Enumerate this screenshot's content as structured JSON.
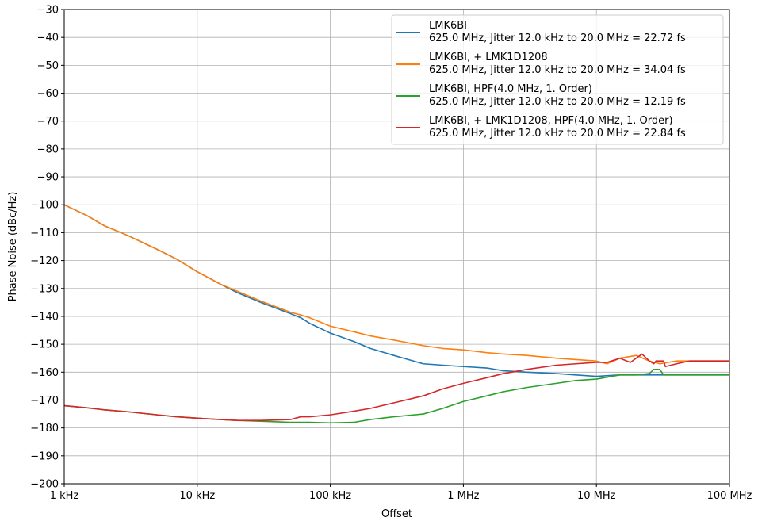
{
  "chart_data": {
    "type": "line",
    "x_scale": "log",
    "xlabel": "Offset",
    "ylabel": "Phase Noise (dBc/Hz)",
    "xlim": [
      1000,
      100000000
    ],
    "ylim": [
      -200,
      -30
    ],
    "x_ticks": [
      {
        "value": 1000,
        "label": "1 kHz"
      },
      {
        "value": 10000,
        "label": "10 kHz"
      },
      {
        "value": 100000,
        "label": "100 kHz"
      },
      {
        "value": 1000000,
        "label": "1 MHz"
      },
      {
        "value": 10000000,
        "label": "10 MHz"
      },
      {
        "value": 100000000,
        "label": "100 MHz"
      }
    ],
    "y_ticks": [
      {
        "value": -30,
        "label": "−30"
      },
      {
        "value": -40,
        "label": "−40"
      },
      {
        "value": -50,
        "label": "−50"
      },
      {
        "value": -60,
        "label": "−60"
      },
      {
        "value": -70,
        "label": "−70"
      },
      {
        "value": -80,
        "label": "−80"
      },
      {
        "value": -90,
        "label": "−90"
      },
      {
        "value": -100,
        "label": "−100"
      },
      {
        "value": -110,
        "label": "−110"
      },
      {
        "value": -120,
        "label": "−120"
      },
      {
        "value": -130,
        "label": "−130"
      },
      {
        "value": -140,
        "label": "−140"
      },
      {
        "value": -150,
        "label": "−150"
      },
      {
        "value": -160,
        "label": "−160"
      },
      {
        "value": -170,
        "label": "−170"
      },
      {
        "value": -180,
        "label": "−180"
      },
      {
        "value": -190,
        "label": "−190"
      },
      {
        "value": -200,
        "label": "−200"
      }
    ],
    "grid": true,
    "legend_position": "top-right",
    "series": [
      {
        "name": "LMK6BI",
        "subtitle": "625.0 MHz, Jitter 12.0 kHz to 20.0 MHz = 22.72 fs",
        "color": "#1f77b4",
        "points": [
          [
            1000,
            -100
          ],
          [
            1500,
            -104
          ],
          [
            2000,
            -107.5
          ],
          [
            3000,
            -111
          ],
          [
            5000,
            -116
          ],
          [
            7000,
            -119.5
          ],
          [
            10000,
            -124
          ],
          [
            15000,
            -128.5
          ],
          [
            20000,
            -131.5
          ],
          [
            30000,
            -135
          ],
          [
            50000,
            -139
          ],
          [
            60000,
            -140.5
          ],
          [
            70000,
            -142.5
          ],
          [
            100000,
            -146
          ],
          [
            150000,
            -149
          ],
          [
            200000,
            -151.5
          ],
          [
            300000,
            -154
          ],
          [
            500000,
            -157
          ],
          [
            700000,
            -157.5
          ],
          [
            1000000,
            -158
          ],
          [
            1500000,
            -158.5
          ],
          [
            2000000,
            -159.5
          ],
          [
            3000000,
            -160
          ],
          [
            5000000,
            -160.5
          ],
          [
            7000000,
            -161
          ],
          [
            10000000,
            -161.5
          ],
          [
            15000000,
            -161
          ],
          [
            20000000,
            -161
          ],
          [
            30000000,
            -161
          ],
          [
            50000000,
            -161
          ],
          [
            100000000,
            -161
          ]
        ]
      },
      {
        "name": "LMK6BI, + LMK1D1208",
        "subtitle": "625.0 MHz, Jitter 12.0 kHz to 20.0 MHz = 34.04 fs",
        "color": "#ff7f0e",
        "points": [
          [
            1000,
            -100
          ],
          [
            1500,
            -104
          ],
          [
            2000,
            -107.5
          ],
          [
            3000,
            -111
          ],
          [
            5000,
            -116
          ],
          [
            7000,
            -119.5
          ],
          [
            10000,
            -124
          ],
          [
            15000,
            -128.5
          ],
          [
            20000,
            -131
          ],
          [
            30000,
            -134.5
          ],
          [
            50000,
            -138.5
          ],
          [
            60000,
            -139.5
          ],
          [
            70000,
            -140.5
          ],
          [
            100000,
            -143.5
          ],
          [
            150000,
            -145.5
          ],
          [
            200000,
            -147
          ],
          [
            300000,
            -148.5
          ],
          [
            500000,
            -150.5
          ],
          [
            700000,
            -151.5
          ],
          [
            1000000,
            -152
          ],
          [
            1500000,
            -153
          ],
          [
            2000000,
            -153.5
          ],
          [
            3000000,
            -154
          ],
          [
            5000000,
            -155
          ],
          [
            7000000,
            -155.5
          ],
          [
            10000000,
            -156
          ],
          [
            12000000,
            -157
          ],
          [
            15000000,
            -155
          ],
          [
            20000000,
            -154
          ],
          [
            25000000,
            -156
          ],
          [
            30000000,
            -157
          ],
          [
            40000000,
            -156
          ],
          [
            50000000,
            -156
          ],
          [
            100000000,
            -156
          ]
        ]
      },
      {
        "name": "LMK6BI, HPF(4.0 MHz, 1. Order)",
        "subtitle": "625.0 MHz, Jitter 12.0 kHz to 20.0 MHz = 12.19 fs",
        "color": "#2ca02c",
        "points": [
          [
            1000,
            -172
          ],
          [
            1500,
            -172.8
          ],
          [
            2000,
            -173.5
          ],
          [
            3000,
            -174.2
          ],
          [
            5000,
            -175.3
          ],
          [
            7000,
            -176
          ],
          [
            10000,
            -176.5
          ],
          [
            15000,
            -177
          ],
          [
            20000,
            -177.3
          ],
          [
            30000,
            -177.6
          ],
          [
            50000,
            -178
          ],
          [
            70000,
            -178
          ],
          [
            100000,
            -178.2
          ],
          [
            150000,
            -178
          ],
          [
            200000,
            -177
          ],
          [
            300000,
            -176
          ],
          [
            500000,
            -175
          ],
          [
            700000,
            -173
          ],
          [
            1000000,
            -170.5
          ],
          [
            1500000,
            -168.5
          ],
          [
            2000000,
            -167
          ],
          [
            3000000,
            -165.5
          ],
          [
            5000000,
            -164
          ],
          [
            7000000,
            -163
          ],
          [
            10000000,
            -162.5
          ],
          [
            15000000,
            -161
          ],
          [
            20000000,
            -161
          ],
          [
            25000000,
            -160.5
          ],
          [
            27000000,
            -159
          ],
          [
            30000000,
            -159
          ],
          [
            32000000,
            -161
          ],
          [
            50000000,
            -161
          ],
          [
            100000000,
            -161
          ]
        ]
      },
      {
        "name": "LMK6BI, + LMK1D1208, HPF(4.0 MHz, 1. Order)",
        "subtitle": "625.0 MHz, Jitter 12.0 kHz to 20.0 MHz = 22.84 fs",
        "color": "#d62728",
        "points": [
          [
            1000,
            -172
          ],
          [
            1500,
            -172.8
          ],
          [
            2000,
            -173.5
          ],
          [
            3000,
            -174.2
          ],
          [
            5000,
            -175.3
          ],
          [
            7000,
            -176
          ],
          [
            10000,
            -176.5
          ],
          [
            15000,
            -177
          ],
          [
            20000,
            -177.3
          ],
          [
            30000,
            -177.3
          ],
          [
            50000,
            -177
          ],
          [
            60000,
            -176
          ],
          [
            70000,
            -176
          ],
          [
            100000,
            -175.3
          ],
          [
            150000,
            -174
          ],
          [
            200000,
            -173
          ],
          [
            300000,
            -171
          ],
          [
            500000,
            -168.5
          ],
          [
            700000,
            -166
          ],
          [
            1000000,
            -164
          ],
          [
            1500000,
            -162
          ],
          [
            2000000,
            -160.5
          ],
          [
            3000000,
            -159
          ],
          [
            5000000,
            -157.5
          ],
          [
            7000000,
            -157
          ],
          [
            10000000,
            -156.5
          ],
          [
            12000000,
            -156.5
          ],
          [
            15000000,
            -155
          ],
          [
            18000000,
            -156.5
          ],
          [
            22000000,
            -153.5
          ],
          [
            25000000,
            -156
          ],
          [
            27000000,
            -157
          ],
          [
            28000000,
            -156
          ],
          [
            32000000,
            -156
          ],
          [
            33000000,
            -158
          ],
          [
            40000000,
            -157
          ],
          [
            50000000,
            -156
          ],
          [
            100000000,
            -156
          ]
        ]
      }
    ]
  }
}
